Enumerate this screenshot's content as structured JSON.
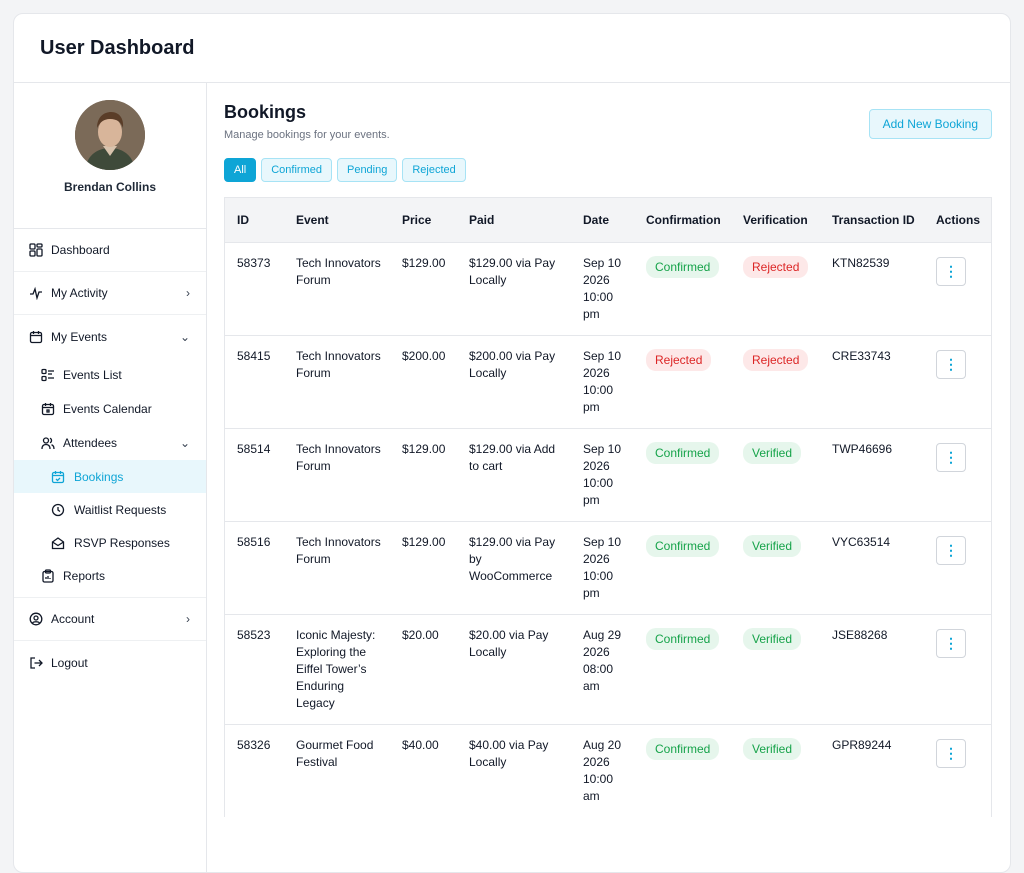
{
  "app": {
    "title": "User Dashboard"
  },
  "profile": {
    "name": "Brendan Collins"
  },
  "sidebar": {
    "dashboard": "Dashboard",
    "my_activity": "My Activity",
    "my_events": "My Events",
    "events_list": "Events List",
    "events_calendar": "Events Calendar",
    "attendees": "Attendees",
    "bookings": "Bookings",
    "waitlist": "Waitlist Requests",
    "rsvp": "RSVP Responses",
    "reports": "Reports",
    "account": "Account",
    "logout": "Logout"
  },
  "main": {
    "title": "Bookings",
    "subtitle": "Manage bookings for your events.",
    "add_button": "Add New Booking",
    "filters": [
      "All",
      "Confirmed",
      "Pending",
      "Rejected"
    ]
  },
  "table": {
    "headers": [
      "ID",
      "Event",
      "Price",
      "Paid",
      "Date",
      "Confirmation",
      "Verification",
      "Transaction ID",
      "Actions"
    ],
    "rows": [
      {
        "id": "58373",
        "event": "Tech Innovators Forum",
        "price": "$129.00",
        "paid": "$129.00 via Pay Locally",
        "date": "Sep 10 2026 10:00 pm",
        "confirmation": "Confirmed",
        "verification": "Rejected",
        "txn": "KTN82539"
      },
      {
        "id": "58415",
        "event": "Tech Innovators Forum",
        "price": "$200.00",
        "paid": "$200.00 via Pay Locally",
        "date": "Sep 10 2026 10:00 pm",
        "confirmation": "Rejected",
        "verification": "Rejected",
        "txn": "CRE33743"
      },
      {
        "id": "58514",
        "event": "Tech Innovators Forum",
        "price": "$129.00",
        "paid": "$129.00 via Add to cart",
        "date": "Sep 10 2026 10:00 pm",
        "confirmation": "Confirmed",
        "verification": "Verified",
        "txn": "TWP46696"
      },
      {
        "id": "58516",
        "event": "Tech Innovators Forum",
        "price": "$129.00",
        "paid": "$129.00 via Pay by WooCommerce",
        "date": "Sep 10 2026 10:00 pm",
        "confirmation": "Confirmed",
        "verification": "Verified",
        "txn": "VYC63514"
      },
      {
        "id": "58523",
        "event": "Iconic Majesty: Exploring the Eiffel Tower’s Enduring Legacy",
        "price": "$20.00",
        "paid": "$20.00 via Pay Locally",
        "date": "Aug 29 2026 08:00 am",
        "confirmation": "Confirmed",
        "verification": "Verified",
        "txn": "JSE88268"
      },
      {
        "id": "58326",
        "event": "Gourmet Food Festival",
        "price": "$40.00",
        "paid": "$40.00 via Pay Locally",
        "date": "Aug 20 2026 10:00 am",
        "confirmation": "Confirmed",
        "verification": "Verified",
        "txn": "GPR89244"
      }
    ]
  },
  "colors": {
    "accent": "#0ea5d6",
    "success": "#16a34a",
    "danger": "#dc2626"
  },
  "icons": {
    "action": "kebab-vertical-icon"
  }
}
